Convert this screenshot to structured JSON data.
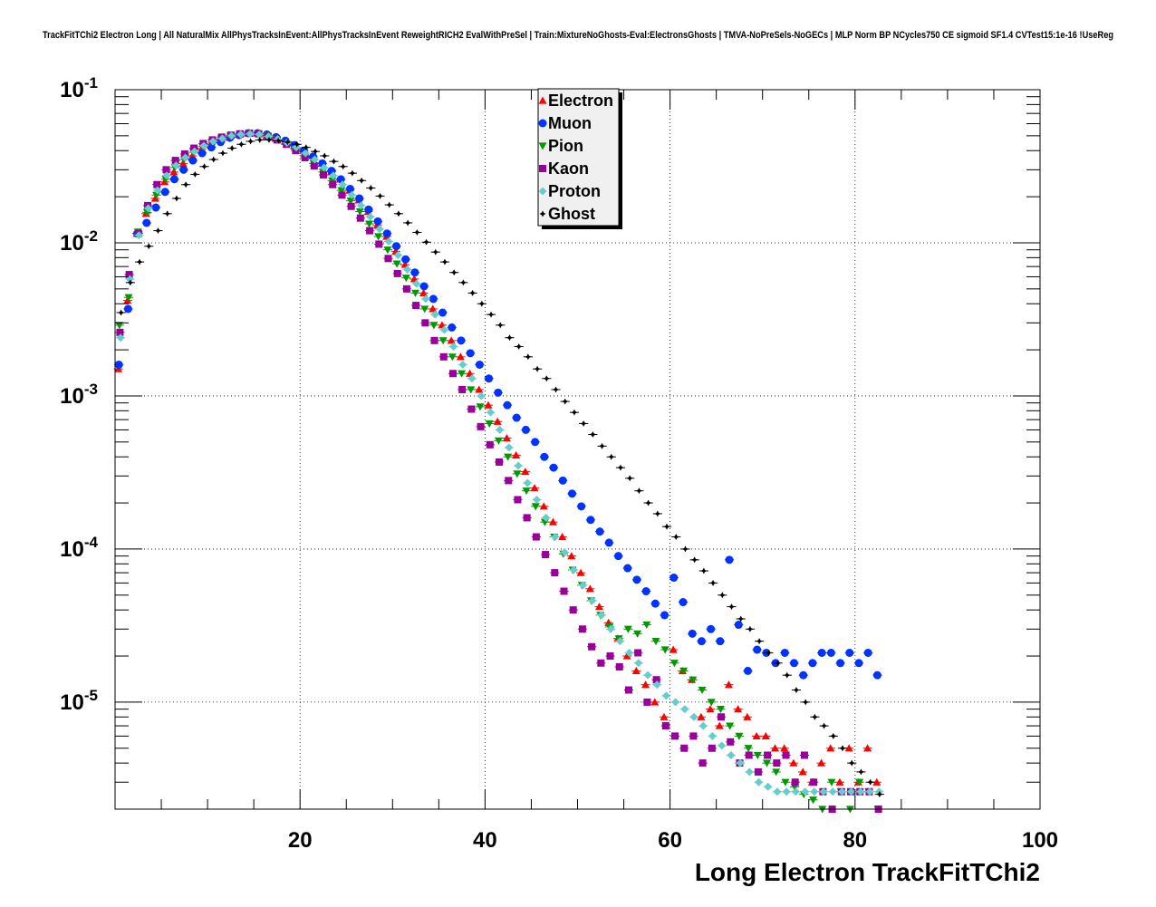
{
  "chart_data": {
    "type": "scatter",
    "title": "TrackFitTChi2 Electron Long | All NaturalMix AllPhysTracksInEvent:AllPhysTracksInEvent ReweightRICH2 EvalWithPreSel | Train:MixtureNoGhosts-Eval:ElectronsGhosts | TMVA-NoPreSels-NoGECs | MLP Norm BP NCycles750 CE sigmoid SF1.4 CVTest15:1e-16 !UseReg",
    "xlabel": "Long Electron TrackFitTChi2",
    "ylabel": "",
    "xlim": [
      0,
      100
    ],
    "ylim": [
      2e-06,
      0.1
    ],
    "yscale": "log",
    "grid": true,
    "legend_position": "top-center",
    "x_ticks": [
      {
        "value": 20,
        "label": "20"
      },
      {
        "value": 40,
        "label": "40"
      },
      {
        "value": 60,
        "label": "60"
      },
      {
        "value": 80,
        "label": "80"
      },
      {
        "value": 100,
        "label": "100"
      }
    ],
    "y_ticks": [
      {
        "value": 0.1,
        "base": "10",
        "exp": "-1"
      },
      {
        "value": 0.01,
        "base": "10",
        "exp": "-2"
      },
      {
        "value": 0.001,
        "base": "10",
        "exp": "-3"
      },
      {
        "value": 0.0001,
        "base": "10",
        "exp": "-4"
      },
      {
        "value": 1e-05,
        "base": "10",
        "exp": "-5"
      }
    ],
    "series": [
      {
        "name": "Electron",
        "color": "#ff0000",
        "marker": "triangle-up",
        "x_start": 0.5,
        "x_step": 1,
        "values": [
          0.0015,
          0.0042,
          0.0115,
          0.0155,
          0.0195,
          0.025,
          0.029,
          0.033,
          0.037,
          0.041,
          0.044,
          0.047,
          0.049,
          0.051,
          0.052,
          0.052,
          0.05,
          0.048,
          0.046,
          0.043,
          0.04,
          0.037,
          0.033,
          0.029,
          0.026,
          0.022,
          0.019,
          0.016,
          0.013,
          0.011,
          0.0088,
          0.0072,
          0.0058,
          0.0047,
          0.0037,
          0.0029,
          0.0023,
          0.0018,
          0.0014,
          0.0011,
          0.00087,
          0.00068,
          0.00053,
          0.00041,
          0.00032,
          0.00025,
          0.00019,
          0.00015,
          0.00012,
          9e-05,
          7e-05,
          5.5e-05,
          4.2e-05,
          3.3e-05,
          2.6e-05,
          2e-05,
          1.6e-05,
          1.3e-05,
          1e-05,
          8e-06,
          2.2e-05,
          1.6e-05,
          1.4e-05,
          8e-06,
          9e-06,
          7e-06,
          1.3e-05,
          9e-06,
          8e-06,
          6e-06,
          6e-06,
          5e-06,
          5e-06,
          4e-06,
          3.5e-06,
          3e-06,
          4e-06,
          5e-06,
          3e-06,
          5e-06,
          3e-06,
          5e-06,
          3e-06
        ]
      },
      {
        "name": "Muon",
        "color": "#0033ff",
        "marker": "circle",
        "x_start": 0.5,
        "x_step": 1,
        "values": [
          0.0016,
          0.0037,
          0.0115,
          0.0135,
          0.017,
          0.0215,
          0.026,
          0.03,
          0.0345,
          0.0385,
          0.042,
          0.0455,
          0.0485,
          0.0505,
          0.052,
          0.052,
          0.051,
          0.049,
          0.0465,
          0.0435,
          0.04,
          0.0365,
          0.033,
          0.0295,
          0.026,
          0.0225,
          0.0195,
          0.0165,
          0.0138,
          0.0115,
          0.0095,
          0.0078,
          0.0064,
          0.0052,
          0.0043,
          0.0035,
          0.0028,
          0.0023,
          0.0019,
          0.0016,
          0.0013,
          0.00105,
          0.00087,
          0.00072,
          0.0006,
          0.0005,
          0.0004,
          0.00034,
          0.00028,
          0.00023,
          0.00019,
          0.000155,
          0.00013,
          0.00011,
          9e-05,
          7.5e-05,
          6.3e-05,
          5.3e-05,
          4.4e-05,
          3.7e-05,
          6.5e-05,
          4.5e-05,
          2.8e-05,
          2.5e-05,
          3e-05,
          2.5e-05,
          8.5e-05,
          3.2e-05,
          1.6e-05,
          2.2e-05,
          2.1e-05,
          1.8e-05,
          2.1e-05,
          1.8e-05,
          1.5e-05,
          1.8e-05,
          2.1e-05,
          2.1e-05,
          1.8e-05,
          2.1e-05,
          1.8e-05,
          2.1e-05,
          1.5e-05
        ]
      },
      {
        "name": "Pion",
        "color": "#009900",
        "marker": "triangle-down",
        "x_start": 0.5,
        "x_step": 1,
        "values": [
          0.0029,
          0.0044,
          0.0118,
          0.0158,
          0.0205,
          0.026,
          0.031,
          0.035,
          0.039,
          0.0425,
          0.0455,
          0.048,
          0.05,
          0.0515,
          0.052,
          0.0515,
          0.05,
          0.0475,
          0.0445,
          0.041,
          0.037,
          0.033,
          0.029,
          0.0255,
          0.022,
          0.0188,
          0.016,
          0.0133,
          0.011,
          0.009,
          0.0073,
          0.0059,
          0.0047,
          0.0037,
          0.0029,
          0.0023,
          0.0018,
          0.0014,
          0.0011,
          0.00085,
          0.00066,
          0.00051,
          0.0004,
          0.00031,
          0.00024,
          0.00019,
          0.00015,
          0.00012,
          9.3e-05,
          7.3e-05,
          5.8e-05,
          4.6e-05,
          3.7e-05,
          3.1e-05,
          2.6e-05,
          3e-05,
          2.8e-05,
          3.2e-05,
          2.5e-05,
          2.2e-05,
          1.8e-05,
          1.6e-05,
          1.4e-05,
          1.2e-05,
          1e-05,
          9e-06,
          7e-06,
          6e-06,
          5e-06,
          4.5e-06,
          4e-06,
          3.5e-06,
          3e-06,
          2.8e-06,
          2.5e-06,
          2.3e-06,
          2e-06,
          3e-06,
          2.6e-06,
          2e-06,
          3e-06,
          2.6e-06,
          2e-06
        ]
      },
      {
        "name": "Kaon",
        "color": "#990099",
        "marker": "square",
        "x_start": 0.5,
        "x_step": 1,
        "values": [
          0.0026,
          0.0062,
          0.0115,
          0.0175,
          0.024,
          0.03,
          0.0345,
          0.038,
          0.0415,
          0.0445,
          0.047,
          0.049,
          0.0505,
          0.0515,
          0.052,
          0.0515,
          0.0495,
          0.047,
          0.044,
          0.04,
          0.036,
          0.0318,
          0.0278,
          0.024,
          0.0205,
          0.0173,
          0.0145,
          0.012,
          0.0098,
          0.0079,
          0.0063,
          0.005,
          0.0039,
          0.003,
          0.0023,
          0.0018,
          0.0014,
          0.0011,
          0.00082,
          0.00063,
          0.00048,
          0.00037,
          0.00028,
          0.00021,
          0.00016,
          0.00012,
          9.2e-05,
          7e-05,
          5.3e-05,
          4e-05,
          3e-05,
          2.3e-05,
          1.8e-05,
          2e-05,
          1.7e-05,
          1.2e-05,
          2.1e-05,
          1e-05,
          1.4e-05,
          7e-06,
          6e-06,
          5e-06,
          6e-06,
          4e-06,
          5e-06,
          8e-06,
          5.5e-06,
          4e-06,
          4.5e-06,
          3.5e-06,
          4.5e-06,
          4e-06,
          4.5e-06,
          3e-06,
          4.5e-06,
          3e-06,
          2.6e-06,
          2e-06,
          2.6e-06,
          2.6e-06,
          2.6e-06,
          2.6e-06,
          2e-06
        ]
      },
      {
        "name": "Proton",
        "color": "#66cccc",
        "marker": "diamond",
        "x_start": 0.5,
        "x_step": 1,
        "values": [
          0.0024,
          0.0058,
          0.0112,
          0.0168,
          0.022,
          0.0275,
          0.032,
          0.036,
          0.0395,
          0.043,
          0.046,
          0.048,
          0.05,
          0.051,
          0.0515,
          0.051,
          0.0495,
          0.0475,
          0.045,
          0.042,
          0.0385,
          0.035,
          0.031,
          0.0275,
          0.024,
          0.0205,
          0.0175,
          0.0148,
          0.0123,
          0.0102,
          0.0083,
          0.0067,
          0.0054,
          0.0043,
          0.0034,
          0.0027,
          0.0021,
          0.0016,
          0.0013,
          0.001,
          0.00078,
          0.0006,
          0.00046,
          0.00035,
          0.00027,
          0.00021,
          0.00016,
          0.00012,
          9.5e-05,
          7.3e-05,
          5.8e-05,
          4.6e-05,
          3.7e-05,
          3e-05,
          2.5e-05,
          2.1e-05,
          1.8e-05,
          1.5e-05,
          1.3e-05,
          1.1e-05,
          1e-05,
          9e-06,
          8e-06,
          7e-06,
          6e-06,
          5.2e-06,
          4.5e-06,
          4e-06,
          3.5e-06,
          3e-06,
          2.8e-06,
          2.6e-06,
          2.6e-06,
          2.6e-06,
          2.6e-06,
          2.6e-06,
          2.6e-06,
          2.6e-06,
          2.6e-06,
          2.6e-06,
          2.6e-06,
          2.6e-06,
          2.6e-06
        ]
      },
      {
        "name": "Ghost",
        "color": "#000000",
        "marker": "star",
        "x_start": 0.5,
        "x_step": 1,
        "values": [
          0.0035,
          0.0055,
          0.0075,
          0.0095,
          0.012,
          0.0155,
          0.0195,
          0.024,
          0.028,
          0.0315,
          0.035,
          0.0385,
          0.0415,
          0.044,
          0.046,
          0.047,
          0.047,
          0.0465,
          0.0455,
          0.044,
          0.042,
          0.0395,
          0.037,
          0.034,
          0.0315,
          0.0285,
          0.0255,
          0.0228,
          0.0202,
          0.0177,
          0.0155,
          0.0135,
          0.0117,
          0.0101,
          0.0087,
          0.0075,
          0.0064,
          0.0055,
          0.0047,
          0.004,
          0.0034,
          0.0029,
          0.0024,
          0.0021,
          0.0018,
          0.0015,
          0.0013,
          0.0011,
          0.00092,
          0.00078,
          0.00066,
          0.00056,
          0.00047,
          0.0004,
          0.00034,
          0.00029,
          0.00024,
          0.0002,
          0.00017,
          0.00014,
          0.00012,
          0.0001,
          8.5e-05,
          7.2e-05,
          6e-05,
          5e-05,
          4.2e-05,
          3.5e-05,
          3e-05,
          2.5e-05,
          2.1e-05,
          1.8e-05,
          1.5e-05,
          1.2e-05,
          1e-05,
          8e-06,
          7e-06,
          6e-06,
          5e-06,
          4e-06,
          3.5e-06,
          3e-06,
          2.5e-06
        ]
      }
    ]
  }
}
